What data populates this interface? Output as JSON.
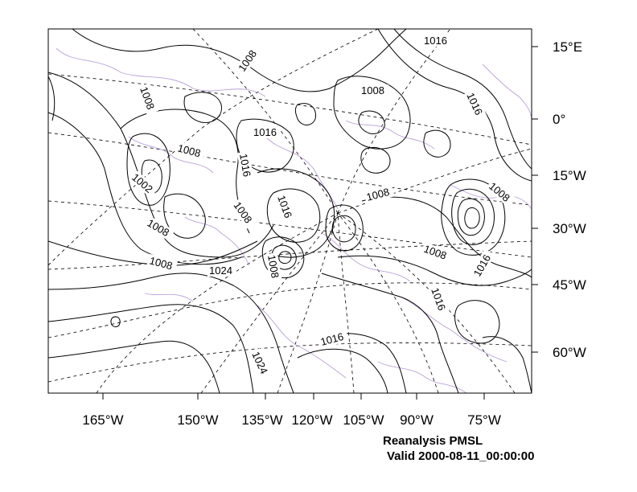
{
  "map": {
    "title": "Reanalysis PMSL",
    "valid": "Valid 2000-08-11_00:00:00",
    "longitude_labels": [
      "165°W",
      "150°W",
      "135°W",
      "120°W",
      "105°W",
      "90°W",
      "75°W"
    ],
    "latitude_labels": [
      "15°E",
      "0°",
      "15°W",
      "30°W",
      "45°W",
      "60°W"
    ],
    "contour_labels": [
      "1016",
      "1008",
      "1008",
      "1008",
      "1016",
      "1016",
      "1008",
      "1016",
      "1008",
      "1002",
      "1008",
      "1008",
      "1016",
      "1008",
      "1008",
      "1008",
      "1016",
      "1024",
      "1008",
      "1016",
      "1016",
      "1024"
    ],
    "colors": {
      "contour": "#000000",
      "coastline": "#b9a3d6",
      "grid": "#000000",
      "background": "#ffffff"
    }
  }
}
